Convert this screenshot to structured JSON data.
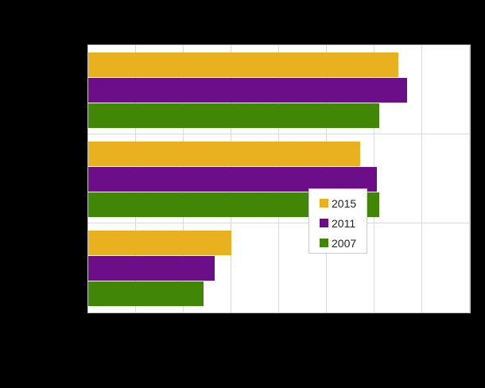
{
  "colors": {
    "canvas_background": "#000000",
    "plot_background": "#FFFFFF",
    "plot_border": "#C6C6C6",
    "gridline": "#D9D9D9",
    "legend_border": "#CCCCCC",
    "legend_text": "#222222"
  },
  "chart_data": {
    "type": "bar",
    "orientation": "horizontal",
    "title": "",
    "xlabel": "",
    "ylabel": "",
    "categories": [
      "",
      "",
      ""
    ],
    "series": [
      {
        "name": "2015",
        "color": "#E9B120",
        "values": [
          65.0,
          57.0,
          30.0
        ]
      },
      {
        "name": "2011",
        "color": "#6C0E87",
        "values": [
          66.8,
          60.5,
          26.5
        ]
      },
      {
        "name": "2007",
        "color": "#418606",
        "values": [
          61.0,
          61.0,
          24.2
        ]
      }
    ],
    "xlim": [
      0,
      80
    ],
    "gridline_interval": 10,
    "grid": true,
    "legend_position": "inside-bottom-right"
  }
}
